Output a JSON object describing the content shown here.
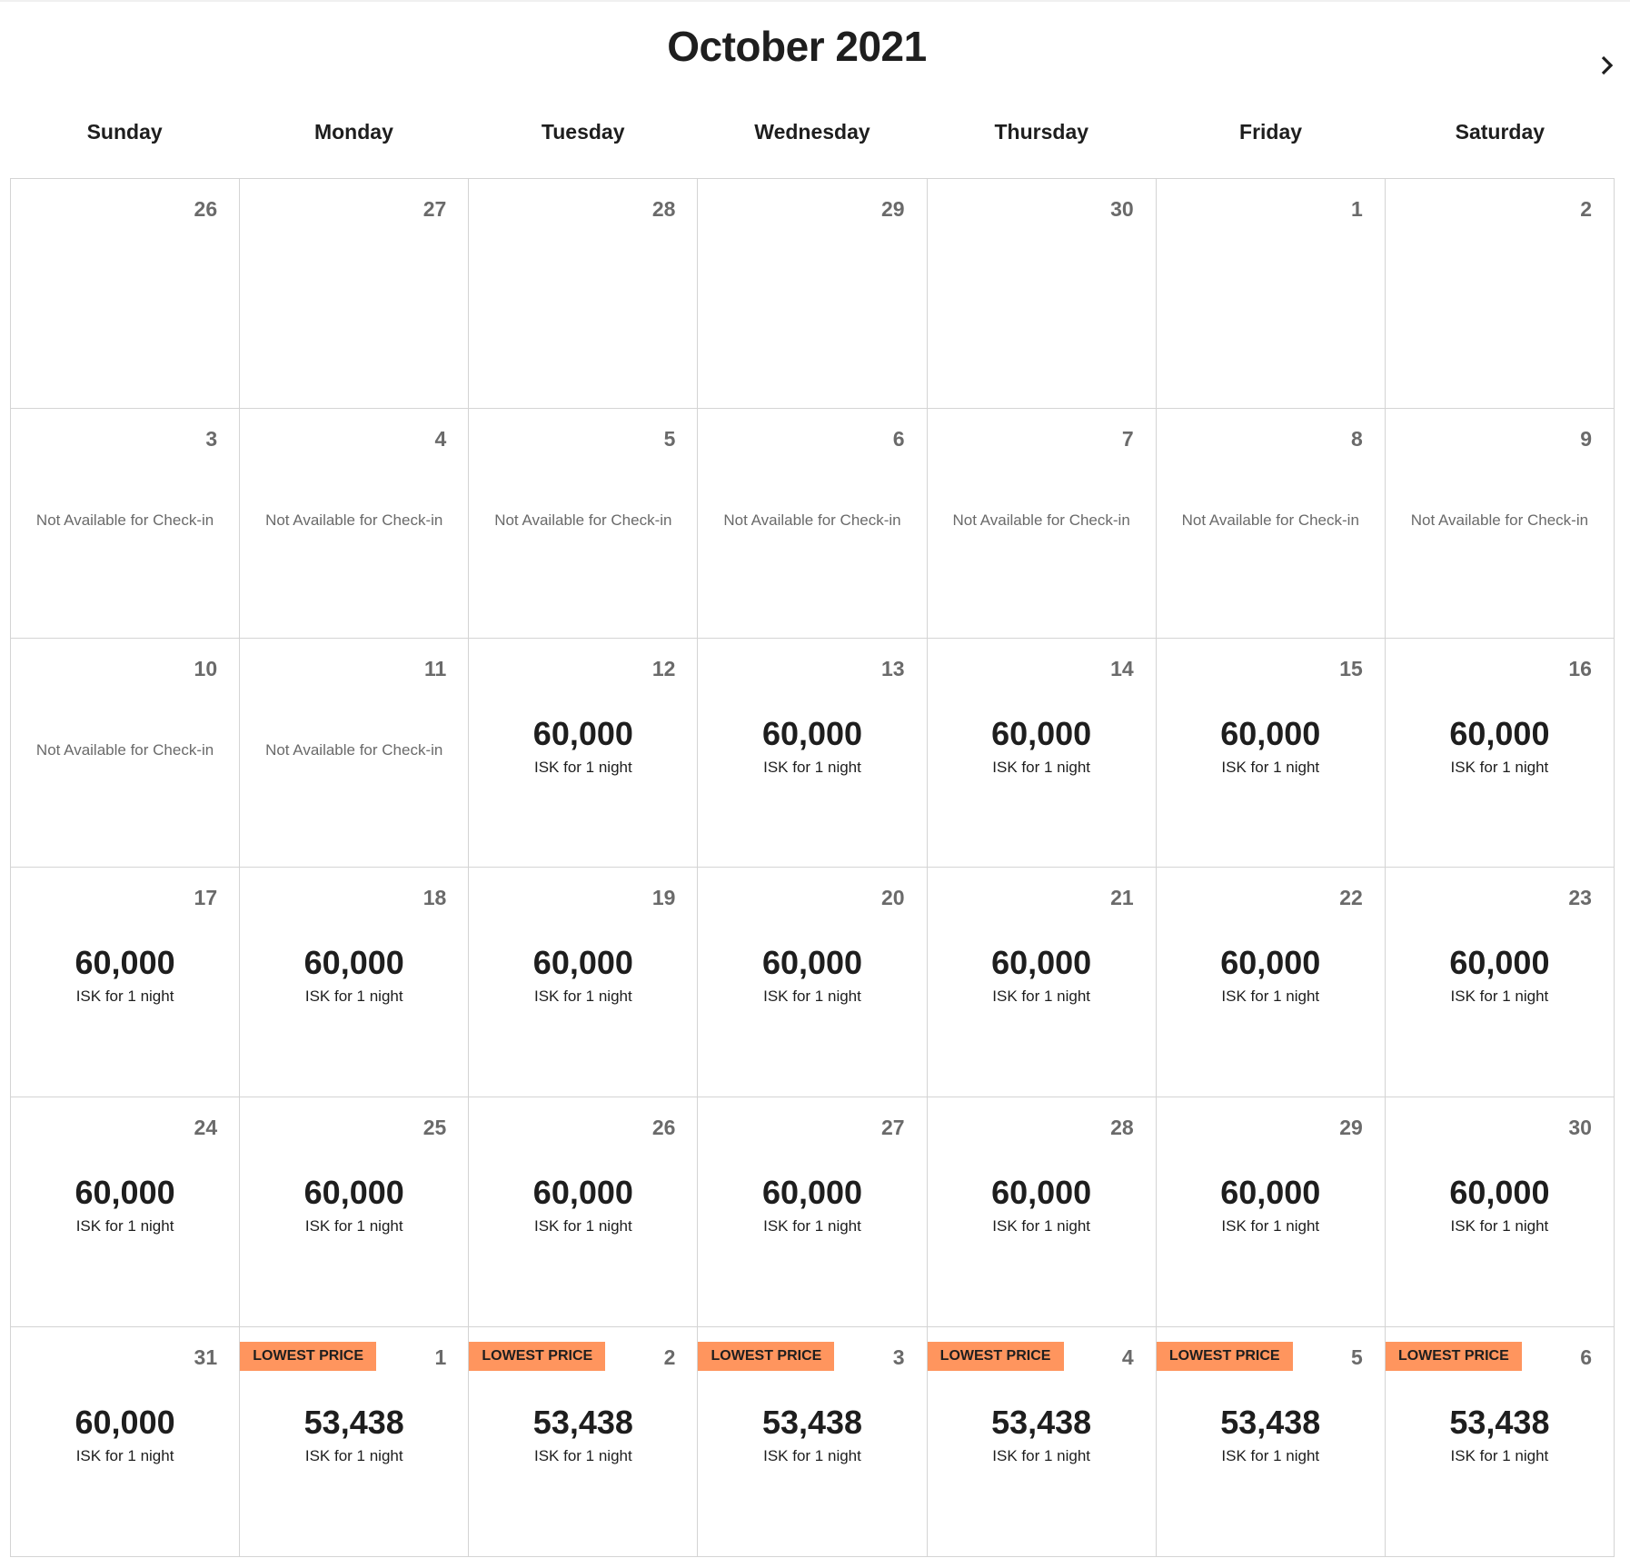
{
  "header": {
    "title": "October 2021",
    "next_icon": "chevron-right-icon"
  },
  "weekdays": [
    "Sunday",
    "Monday",
    "Tuesday",
    "Wednesday",
    "Thursday",
    "Friday",
    "Saturday"
  ],
  "colors": {
    "badge": "#ff955e",
    "day_number": "#6a6a6a",
    "border": "#d4d4d4"
  },
  "labels": {
    "not_available": "Not Available for Check-in",
    "per_night": "ISK for 1 night",
    "badge": "LOWEST PRICE"
  },
  "days": [
    {
      "day": "26"
    },
    {
      "day": "27"
    },
    {
      "day": "28"
    },
    {
      "day": "29"
    },
    {
      "day": "30"
    },
    {
      "day": "1"
    },
    {
      "day": "2"
    },
    {
      "day": "3",
      "status": "Not Available for Check-in"
    },
    {
      "day": "4",
      "status": "Not Available for Check-in"
    },
    {
      "day": "5",
      "status": "Not Available for Check-in"
    },
    {
      "day": "6",
      "status": "Not Available for Check-in"
    },
    {
      "day": "7",
      "status": "Not Available for Check-in"
    },
    {
      "day": "8",
      "status": "Not Available for Check-in"
    },
    {
      "day": "9",
      "status": "Not Available for Check-in"
    },
    {
      "day": "10",
      "status": "Not Available for Check-in"
    },
    {
      "day": "11",
      "status": "Not Available for Check-in"
    },
    {
      "day": "12",
      "price": "60,000",
      "unit": "ISK for 1 night"
    },
    {
      "day": "13",
      "price": "60,000",
      "unit": "ISK for 1 night"
    },
    {
      "day": "14",
      "price": "60,000",
      "unit": "ISK for 1 night"
    },
    {
      "day": "15",
      "price": "60,000",
      "unit": "ISK for 1 night"
    },
    {
      "day": "16",
      "price": "60,000",
      "unit": "ISK for 1 night"
    },
    {
      "day": "17",
      "price": "60,000",
      "unit": "ISK for 1 night"
    },
    {
      "day": "18",
      "price": "60,000",
      "unit": "ISK for 1 night"
    },
    {
      "day": "19",
      "price": "60,000",
      "unit": "ISK for 1 night"
    },
    {
      "day": "20",
      "price": "60,000",
      "unit": "ISK for 1 night"
    },
    {
      "day": "21",
      "price": "60,000",
      "unit": "ISK for 1 night"
    },
    {
      "day": "22",
      "price": "60,000",
      "unit": "ISK for 1 night"
    },
    {
      "day": "23",
      "price": "60,000",
      "unit": "ISK for 1 night"
    },
    {
      "day": "24",
      "price": "60,000",
      "unit": "ISK for 1 night"
    },
    {
      "day": "25",
      "price": "60,000",
      "unit": "ISK for 1 night"
    },
    {
      "day": "26",
      "price": "60,000",
      "unit": "ISK for 1 night"
    },
    {
      "day": "27",
      "price": "60,000",
      "unit": "ISK for 1 night"
    },
    {
      "day": "28",
      "price": "60,000",
      "unit": "ISK for 1 night"
    },
    {
      "day": "29",
      "price": "60,000",
      "unit": "ISK for 1 night"
    },
    {
      "day": "30",
      "price": "60,000",
      "unit": "ISK for 1 night"
    },
    {
      "day": "31",
      "price": "60,000",
      "unit": "ISK for 1 night"
    },
    {
      "day": "1",
      "price": "53,438",
      "unit": "ISK for 1 night",
      "badge": "LOWEST PRICE"
    },
    {
      "day": "2",
      "price": "53,438",
      "unit": "ISK for 1 night",
      "badge": "LOWEST PRICE"
    },
    {
      "day": "3",
      "price": "53,438",
      "unit": "ISK for 1 night",
      "badge": "LOWEST PRICE"
    },
    {
      "day": "4",
      "price": "53,438",
      "unit": "ISK for 1 night",
      "badge": "LOWEST PRICE"
    },
    {
      "day": "5",
      "price": "53,438",
      "unit": "ISK for 1 night",
      "badge": "LOWEST PRICE"
    },
    {
      "day": "6",
      "price": "53,438",
      "unit": "ISK for 1 night",
      "badge": "LOWEST PRICE"
    }
  ]
}
